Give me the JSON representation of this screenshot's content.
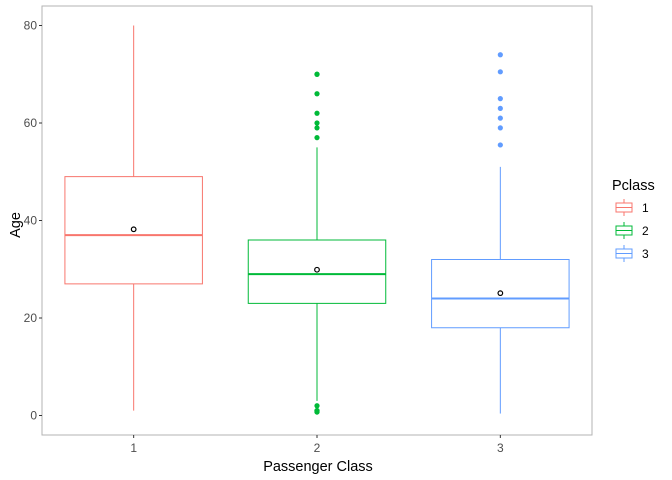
{
  "chart_data": {
    "type": "boxplot",
    "xlabel": "Passenger Class",
    "ylabel": "Age",
    "ylim": [
      -4,
      84
    ],
    "yticks": [
      0,
      20,
      40,
      60,
      80
    ],
    "categories": [
      "1",
      "2",
      "3"
    ],
    "grid": false,
    "legend": {
      "title": "Pclass",
      "position": "right"
    },
    "series": [
      {
        "name": "1",
        "color": "#F8766D",
        "whisker_low": 1,
        "q1": 27,
        "median": 37,
        "q3": 49,
        "whisker_high": 80,
        "mean": 38.2,
        "outliers": []
      },
      {
        "name": "2",
        "color": "#00BA38",
        "whisker_low": 3,
        "q1": 23,
        "median": 29,
        "q3": 36,
        "whisker_high": 55,
        "mean": 29.9,
        "outliers": [
          0.7,
          0.8,
          1,
          1,
          2,
          57,
          59,
          60,
          62,
          66,
          70,
          70
        ]
      },
      {
        "name": "3",
        "color": "#619CFF",
        "whisker_low": 0.4,
        "q1": 18,
        "median": 24,
        "q3": 32,
        "whisker_high": 51,
        "mean": 25.1,
        "outliers": [
          55.5,
          59,
          61,
          63,
          65,
          70.5,
          74
        ]
      }
    ]
  }
}
